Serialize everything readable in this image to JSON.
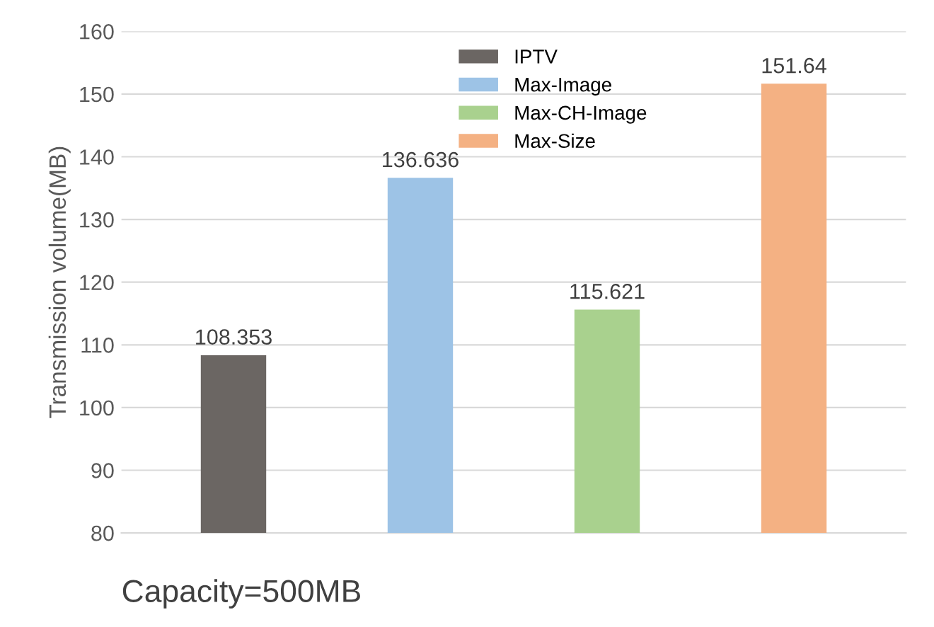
{
  "chart_data": {
    "type": "bar",
    "ylabel": "Transmission volume(MB)",
    "categories": [
      null,
      null,
      null,
      null
    ],
    "series": [
      {
        "name": "IPTV",
        "color": "#6b6663",
        "values": [
          108.353,
          null,
          null,
          null
        ]
      },
      {
        "name": "Max-Image",
        "color": "#9dc3e6",
        "values": [
          null,
          136.636,
          null,
          null
        ]
      },
      {
        "name": "Max-CH-Image",
        "color": "#a9d18e",
        "values": [
          null,
          null,
          115.621,
          null
        ]
      },
      {
        "name": "Max-Size",
        "color": "#f4b183",
        "values": [
          null,
          null,
          null,
          151.64
        ]
      }
    ],
    "ylim": [
      80,
      160
    ],
    "yticks": [
      80,
      90,
      100,
      110,
      120,
      130,
      140,
      150,
      160
    ],
    "grid": "y",
    "legend": "top",
    "data_labels": true,
    "annotations": [
      "Capacity=500MB"
    ]
  }
}
